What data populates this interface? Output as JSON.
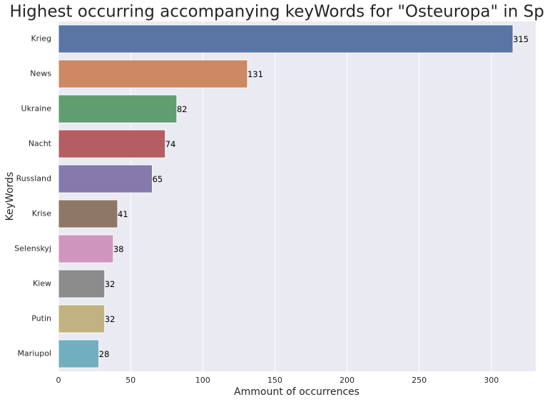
{
  "chart_data": {
    "type": "barh",
    "title": "Highest occurring accompanying keyWords for \"Osteuropa\" in Spiegel",
    "x_label": "Ammount of occurrences",
    "y_label": "KeyWords",
    "categories": [
      "Krieg",
      "News",
      "Ukraine",
      "Nacht",
      "Russland",
      "Krise",
      "Selenskyj",
      "Kiew",
      "Putin",
      "Mariupol"
    ],
    "values": [
      315,
      131,
      82,
      74,
      65,
      41,
      38,
      32,
      32,
      28
    ],
    "colors": [
      "#5975a4",
      "#cc8963",
      "#5f9e6e",
      "#b55d60",
      "#857aab",
      "#8d7866",
      "#d095bf",
      "#8c8c8c",
      "#c1b37f",
      "#71aec0"
    ],
    "xlim": [
      0,
      330.75
    ],
    "xticks": [
      0,
      50,
      100,
      150,
      200,
      250,
      300
    ],
    "grid": true
  }
}
